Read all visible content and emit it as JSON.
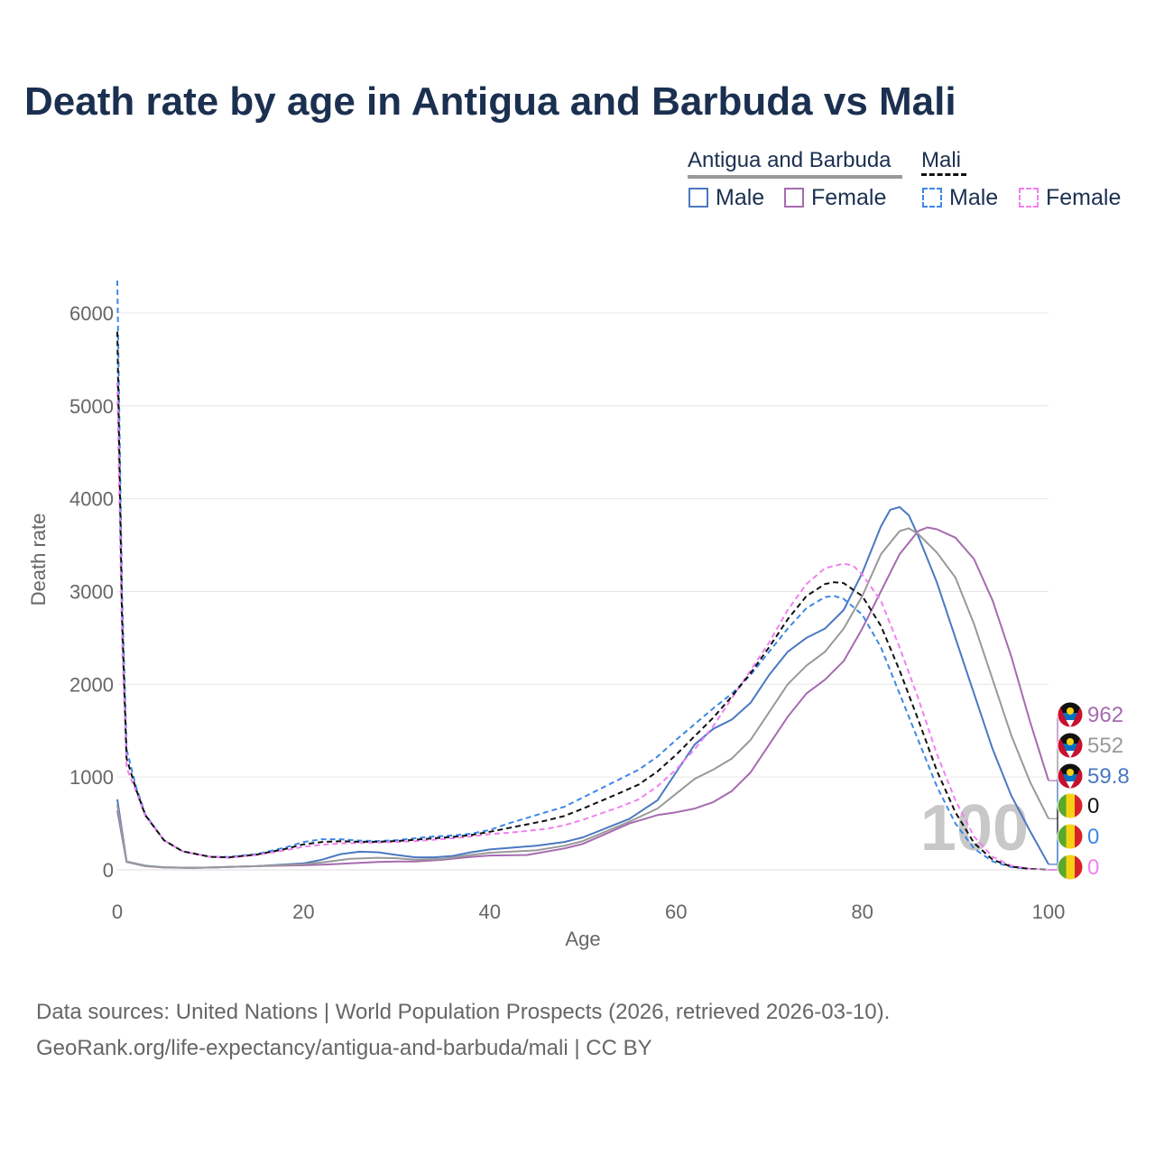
{
  "title": "Death rate by age in Antigua and Barbuda vs Mali",
  "legend": {
    "groups": [
      {
        "label": "Antigua and Barbuda",
        "style": "solid",
        "color": "#888888"
      },
      {
        "label": "Mali",
        "style": "dashed",
        "color": "#111111"
      }
    ],
    "items": [
      {
        "label": "Male",
        "color": "#4a78c2",
        "style": "solid"
      },
      {
        "label": "Female",
        "color": "#a66bb0",
        "style": "solid"
      },
      {
        "label": "Male",
        "color": "#3c88e6",
        "style": "dashed"
      },
      {
        "label": "Female",
        "color": "#f27ff0",
        "style": "dashed"
      }
    ]
  },
  "chart_data": {
    "type": "line",
    "title": "Death rate by age in Antigua and Barbuda vs Mali",
    "xlabel": "Age",
    "ylabel": "Death rate",
    "xlim": [
      0,
      100
    ],
    "ylim": [
      0,
      6500
    ],
    "xticks": [
      0,
      20,
      40,
      60,
      80,
      100
    ],
    "yticks": [
      0,
      1000,
      2000,
      3000,
      4000,
      5000,
      6000
    ],
    "grid": true,
    "watermark": "100",
    "series": [
      {
        "name": "Antigua and Barbuda Male",
        "color": "#4a78c2",
        "dash": false,
        "end_label": "59.8",
        "points": [
          [
            0,
            760
          ],
          [
            1,
            90
          ],
          [
            3,
            45
          ],
          [
            5,
            28
          ],
          [
            8,
            22
          ],
          [
            10,
            25
          ],
          [
            15,
            40
          ],
          [
            20,
            70
          ],
          [
            22,
            110
          ],
          [
            24,
            170
          ],
          [
            26,
            195
          ],
          [
            28,
            190
          ],
          [
            30,
            160
          ],
          [
            32,
            135
          ],
          [
            34,
            135
          ],
          [
            36,
            150
          ],
          [
            38,
            190
          ],
          [
            40,
            220
          ],
          [
            45,
            260
          ],
          [
            48,
            300
          ],
          [
            50,
            350
          ],
          [
            55,
            550
          ],
          [
            58,
            750
          ],
          [
            60,
            1050
          ],
          [
            62,
            1350
          ],
          [
            64,
            1520
          ],
          [
            66,
            1620
          ],
          [
            68,
            1800
          ],
          [
            70,
            2100
          ],
          [
            72,
            2350
          ],
          [
            74,
            2500
          ],
          [
            76,
            2600
          ],
          [
            78,
            2800
          ],
          [
            80,
            3200
          ],
          [
            82,
            3700
          ],
          [
            83,
            3880
          ],
          [
            84,
            3910
          ],
          [
            85,
            3820
          ],
          [
            86,
            3600
          ],
          [
            88,
            3100
          ],
          [
            90,
            2500
          ],
          [
            92,
            1900
          ],
          [
            94,
            1300
          ],
          [
            96,
            800
          ],
          [
            98,
            420
          ],
          [
            100,
            59.8
          ]
        ]
      },
      {
        "name": "Antigua and Barbuda Female",
        "color": "#a66bb0",
        "dash": false,
        "end_label": "962",
        "points": [
          [
            0,
            640
          ],
          [
            1,
            85
          ],
          [
            3,
            40
          ],
          [
            5,
            25
          ],
          [
            8,
            20
          ],
          [
            10,
            25
          ],
          [
            15,
            40
          ],
          [
            20,
            50
          ],
          [
            22,
            55
          ],
          [
            25,
            70
          ],
          [
            28,
            85
          ],
          [
            30,
            90
          ],
          [
            32,
            90
          ],
          [
            35,
            110
          ],
          [
            38,
            140
          ],
          [
            40,
            155
          ],
          [
            44,
            160
          ],
          [
            48,
            230
          ],
          [
            50,
            280
          ],
          [
            55,
            500
          ],
          [
            58,
            590
          ],
          [
            60,
            620
          ],
          [
            62,
            660
          ],
          [
            64,
            730
          ],
          [
            66,
            850
          ],
          [
            68,
            1050
          ],
          [
            70,
            1350
          ],
          [
            72,
            1650
          ],
          [
            74,
            1900
          ],
          [
            76,
            2050
          ],
          [
            78,
            2250
          ],
          [
            80,
            2600
          ],
          [
            82,
            3000
          ],
          [
            84,
            3400
          ],
          [
            86,
            3650
          ],
          [
            87,
            3690
          ],
          [
            88,
            3670
          ],
          [
            90,
            3580
          ],
          [
            92,
            3350
          ],
          [
            94,
            2900
          ],
          [
            96,
            2300
          ],
          [
            98,
            1600
          ],
          [
            100,
            962
          ]
        ]
      },
      {
        "name": "Antigua and Barbuda Total",
        "color": "#999999",
        "dash": false,
        "end_label": "552",
        "points": [
          [
            0,
            700
          ],
          [
            1,
            88
          ],
          [
            3,
            42
          ],
          [
            5,
            27
          ],
          [
            8,
            21
          ],
          [
            10,
            25
          ],
          [
            15,
            40
          ],
          [
            20,
            60
          ],
          [
            22,
            80
          ],
          [
            25,
            120
          ],
          [
            28,
            130
          ],
          [
            30,
            125
          ],
          [
            32,
            110
          ],
          [
            35,
            120
          ],
          [
            38,
            160
          ],
          [
            40,
            185
          ],
          [
            45,
            210
          ],
          [
            48,
            260
          ],
          [
            50,
            310
          ],
          [
            55,
            520
          ],
          [
            58,
            660
          ],
          [
            60,
            820
          ],
          [
            62,
            980
          ],
          [
            64,
            1080
          ],
          [
            66,
            1200
          ],
          [
            68,
            1400
          ],
          [
            70,
            1700
          ],
          [
            72,
            2000
          ],
          [
            74,
            2200
          ],
          [
            76,
            2350
          ],
          [
            78,
            2600
          ],
          [
            80,
            2950
          ],
          [
            82,
            3400
          ],
          [
            84,
            3650
          ],
          [
            85,
            3680
          ],
          [
            86,
            3620
          ],
          [
            88,
            3420
          ],
          [
            90,
            3150
          ],
          [
            92,
            2650
          ],
          [
            94,
            2050
          ],
          [
            96,
            1450
          ],
          [
            98,
            950
          ],
          [
            100,
            552
          ]
        ]
      },
      {
        "name": "Mali Male",
        "color": "#3c88e6",
        "dash": true,
        "end_label": "0",
        "points": [
          [
            0,
            6350
          ],
          [
            0.5,
            3000
          ],
          [
            1,
            1300
          ],
          [
            2,
            900
          ],
          [
            3,
            600
          ],
          [
            5,
            320
          ],
          [
            7,
            200
          ],
          [
            10,
            140
          ],
          [
            12,
            140
          ],
          [
            15,
            170
          ],
          [
            18,
            240
          ],
          [
            20,
            300
          ],
          [
            22,
            330
          ],
          [
            24,
            330
          ],
          [
            26,
            315
          ],
          [
            28,
            310
          ],
          [
            30,
            320
          ],
          [
            32,
            340
          ],
          [
            34,
            360
          ],
          [
            36,
            370
          ],
          [
            38,
            390
          ],
          [
            40,
            430
          ],
          [
            42,
            500
          ],
          [
            44,
            560
          ],
          [
            46,
            620
          ],
          [
            48,
            680
          ],
          [
            50,
            780
          ],
          [
            52,
            880
          ],
          [
            54,
            980
          ],
          [
            56,
            1080
          ],
          [
            58,
            1220
          ],
          [
            60,
            1400
          ],
          [
            62,
            1570
          ],
          [
            64,
            1740
          ],
          [
            66,
            1900
          ],
          [
            68,
            2100
          ],
          [
            70,
            2350
          ],
          [
            72,
            2600
          ],
          [
            74,
            2820
          ],
          [
            76,
            2940
          ],
          [
            77,
            2950
          ],
          [
            78,
            2920
          ],
          [
            80,
            2750
          ],
          [
            82,
            2400
          ],
          [
            84,
            1900
          ],
          [
            86,
            1400
          ],
          [
            88,
            900
          ],
          [
            90,
            500
          ],
          [
            92,
            230
          ],
          [
            94,
            90
          ],
          [
            96,
            30
          ],
          [
            98,
            10
          ],
          [
            100,
            0
          ]
        ]
      },
      {
        "name": "Mali Female",
        "color": "#f27ff0",
        "dash": true,
        "end_label": "0",
        "points": [
          [
            0,
            5250
          ],
          [
            0.5,
            2500
          ],
          [
            1,
            1100
          ],
          [
            2,
            850
          ],
          [
            3,
            580
          ],
          [
            5,
            320
          ],
          [
            7,
            200
          ],
          [
            10,
            140
          ],
          [
            12,
            130
          ],
          [
            15,
            160
          ],
          [
            18,
            210
          ],
          [
            20,
            250
          ],
          [
            22,
            270
          ],
          [
            24,
            285
          ],
          [
            26,
            290
          ],
          [
            28,
            295
          ],
          [
            30,
            300
          ],
          [
            32,
            310
          ],
          [
            34,
            325
          ],
          [
            36,
            340
          ],
          [
            38,
            360
          ],
          [
            40,
            385
          ],
          [
            42,
            400
          ],
          [
            44,
            420
          ],
          [
            46,
            440
          ],
          [
            48,
            480
          ],
          [
            50,
            540
          ],
          [
            52,
            610
          ],
          [
            54,
            680
          ],
          [
            56,
            760
          ],
          [
            58,
            900
          ],
          [
            60,
            1080
          ],
          [
            62,
            1300
          ],
          [
            64,
            1550
          ],
          [
            66,
            1850
          ],
          [
            68,
            2150
          ],
          [
            70,
            2450
          ],
          [
            72,
            2800
          ],
          [
            74,
            3080
          ],
          [
            76,
            3250
          ],
          [
            78,
            3300
          ],
          [
            79,
            3280
          ],
          [
            80,
            3180
          ],
          [
            82,
            2900
          ],
          [
            84,
            2400
          ],
          [
            86,
            1850
          ],
          [
            88,
            1250
          ],
          [
            90,
            750
          ],
          [
            92,
            360
          ],
          [
            94,
            140
          ],
          [
            96,
            45
          ],
          [
            98,
            12
          ],
          [
            100,
            0
          ]
        ]
      },
      {
        "name": "Mali Total",
        "color": "#111111",
        "dash": true,
        "end_label": "0",
        "points": [
          [
            0,
            5800
          ],
          [
            0.5,
            2750
          ],
          [
            1,
            1200
          ],
          [
            2,
            875
          ],
          [
            3,
            590
          ],
          [
            5,
            320
          ],
          [
            7,
            200
          ],
          [
            10,
            140
          ],
          [
            12,
            135
          ],
          [
            15,
            165
          ],
          [
            18,
            225
          ],
          [
            20,
            275
          ],
          [
            22,
            300
          ],
          [
            24,
            308
          ],
          [
            26,
            302
          ],
          [
            28,
            302
          ],
          [
            30,
            310
          ],
          [
            32,
            325
          ],
          [
            34,
            340
          ],
          [
            36,
            355
          ],
          [
            38,
            375
          ],
          [
            40,
            410
          ],
          [
            42,
            450
          ],
          [
            44,
            490
          ],
          [
            46,
            530
          ],
          [
            48,
            580
          ],
          [
            50,
            660
          ],
          [
            52,
            745
          ],
          [
            54,
            830
          ],
          [
            56,
            920
          ],
          [
            58,
            1060
          ],
          [
            60,
            1240
          ],
          [
            62,
            1440
          ],
          [
            64,
            1640
          ],
          [
            66,
            1870
          ],
          [
            68,
            2120
          ],
          [
            70,
            2400
          ],
          [
            72,
            2700
          ],
          [
            74,
            2950
          ],
          [
            76,
            3080
          ],
          [
            77,
            3100
          ],
          [
            78,
            3090
          ],
          [
            80,
            2950
          ],
          [
            82,
            2630
          ],
          [
            84,
            2150
          ],
          [
            86,
            1620
          ],
          [
            88,
            1070
          ],
          [
            90,
            620
          ],
          [
            92,
            290
          ],
          [
            94,
            110
          ],
          [
            96,
            35
          ],
          [
            98,
            10
          ],
          [
            100,
            0
          ]
        ]
      }
    ],
    "end_labels": [
      {
        "text": "962",
        "color": "#a66bb0",
        "flag": "antigua-and-barbuda"
      },
      {
        "text": "552",
        "color": "#999999",
        "flag": "antigua-and-barbuda"
      },
      {
        "text": "59.8",
        "color": "#4a78c2",
        "flag": "antigua-and-barbuda"
      },
      {
        "text": "0",
        "color": "#111111",
        "flag": "mali"
      },
      {
        "text": "0",
        "color": "#3c88e6",
        "flag": "mali"
      },
      {
        "text": "0",
        "color": "#f27ff0",
        "flag": "mali"
      }
    ]
  },
  "source": {
    "line1": "Data sources: United Nations | World Population Prospects (2026, retrieved 2026-03-10).",
    "line2": "GeoRank.org/life-expectancy/antigua-and-barbuda/mali | CC BY"
  }
}
